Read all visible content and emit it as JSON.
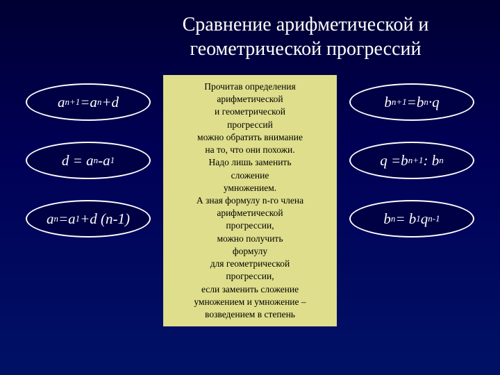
{
  "title_line1": "Сравнение арифметической и",
  "title_line2": "геометрической прогрессий",
  "left": {
    "f1": "a<sub>n+1</sub>=a<sub>n</sub>+d",
    "f2": "d = a<sub>n</sub> -a<sub>1</sub>",
    "f3": "a<sub>n</sub>=a<sub>1</sub>+d (n-1)"
  },
  "right": {
    "f1": "b<sub>n+1</sub>=b<sub>n</sub> ·q",
    "f2": "q =b<sub>n+1</sub>: b<sub>n</sub>",
    "f3": "b<sub>n</sub> = b<sub>1</sub>q<sup>n-1</sup>"
  },
  "center_text": "Прочитав определения<br>арифметической<br>и геометрической<br>прогрессий<br>можно обратить внимание<br>на то, что они похожи.<br>Надо лишь заменить<br>сложение<br>умножением.<br>А зная формулу n-го члена<br>арифметической<br>прогрессии,<br>можно получить<br>формулу<br>для геометрической<br>прогрессии,<br>если заменить сложение<br>умножением и умножение –<br>возведением в степень",
  "colors": {
    "bg_top": "#000033",
    "bg_bottom": "#001166",
    "pill_border": "#ffffff",
    "pill_bg": "#000044",
    "pill_text": "#ffffff",
    "center_bg": "#dede8c",
    "center_text": "#000000",
    "title_color": "#ffffff"
  }
}
